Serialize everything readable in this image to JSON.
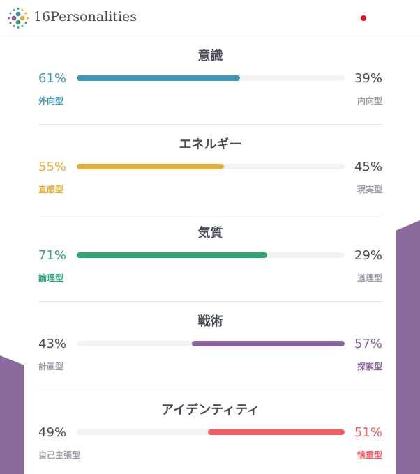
{
  "header": {
    "brand": "16Personalities",
    "flag_icon": "japan-flag-icon",
    "menu_icon": "hamburger-menu-icon"
  },
  "colors": {
    "blue": "#4298b4",
    "yellow": "#e4ae3a",
    "green": "#33a474",
    "purple": "#88619a",
    "red": "#f25e62",
    "neutral_text": "#4a4e5a",
    "muted_text": "#9b9ea8"
  },
  "traits": [
    {
      "title": "意識",
      "left_pct": "61%",
      "right_pct": "39%",
      "left_label": "外向型",
      "right_label": "内向型",
      "dominant": "left",
      "fill_fraction": 0.61,
      "color": "#4298b4"
    },
    {
      "title": "エネルギー",
      "left_pct": "55%",
      "right_pct": "45%",
      "left_label": "直感型",
      "right_label": "現実型",
      "dominant": "left",
      "fill_fraction": 0.55,
      "color": "#e4ae3a"
    },
    {
      "title": "気質",
      "left_pct": "71%",
      "right_pct": "29%",
      "left_label": "論理型",
      "right_label": "道理型",
      "dominant": "left",
      "fill_fraction": 0.71,
      "color": "#33a474"
    },
    {
      "title": "戦術",
      "left_pct": "43%",
      "right_pct": "57%",
      "left_label": "計画型",
      "right_label": "探索型",
      "dominant": "right",
      "fill_fraction": 0.57,
      "color": "#88619a"
    },
    {
      "title": "アイデンティティ",
      "left_pct": "49%",
      "right_pct": "51%",
      "left_label": "自己主張型",
      "right_label": "慎重型",
      "dominant": "right",
      "fill_fraction": 0.51,
      "color": "#f25e62"
    }
  ]
}
